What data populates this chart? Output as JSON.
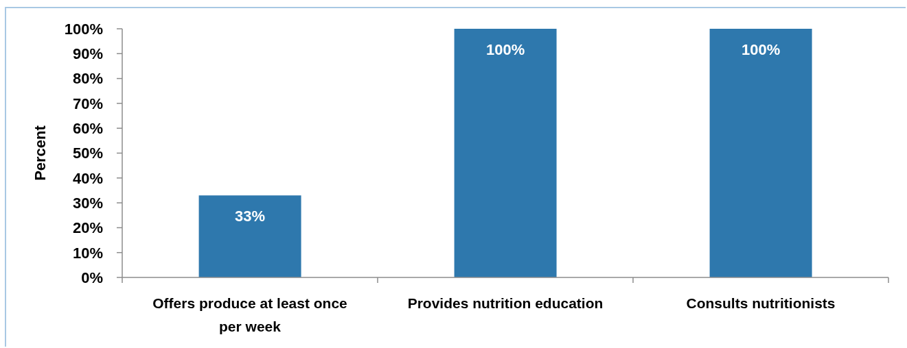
{
  "chart_data": {
    "type": "bar",
    "ylabel": "Percent",
    "categories": [
      "Offers produce at least once per week",
      "Provides nutrition education",
      "Consults nutritionists"
    ],
    "values": [
      33,
      100,
      100
    ],
    "color": "#2e78ad",
    "value_labels": [
      "33%",
      "100%",
      "100%"
    ],
    "ylim": [
      0,
      100
    ],
    "yticks": [
      {
        "value": 0,
        "label": "0%"
      },
      {
        "value": 10,
        "label": "10%"
      },
      {
        "value": 20,
        "label": "20%"
      },
      {
        "value": 30,
        "label": "30%"
      },
      {
        "value": 40,
        "label": "40%"
      },
      {
        "value": 50,
        "label": "50%"
      },
      {
        "value": 60,
        "label": "60%"
      },
      {
        "value": 70,
        "label": "70%"
      },
      {
        "value": 80,
        "label": "80%"
      },
      {
        "value": 90,
        "label": "90%"
      },
      {
        "value": 100,
        "label": "100%"
      }
    ]
  }
}
